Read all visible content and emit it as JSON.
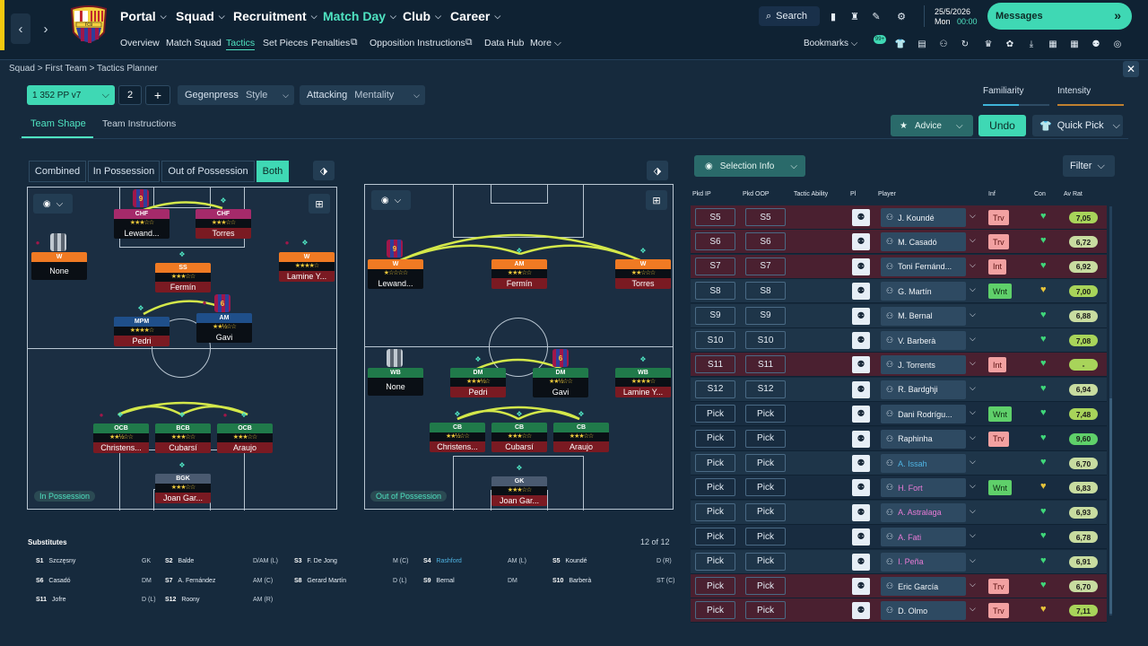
{
  "header": {
    "nav": [
      {
        "label": "Portal"
      },
      {
        "label": "Squad"
      },
      {
        "label": "Recruitment"
      },
      {
        "label": "Match Day"
      },
      {
        "label": "Club"
      },
      {
        "label": "Career"
      }
    ],
    "subnav": [
      "Overview",
      "Match Squad",
      "Tactics",
      "Set Pieces",
      "Penalties",
      "Opposition Instructions",
      "Data Hub",
      "More"
    ],
    "search_label": "Search",
    "date": "25/5/2026",
    "day": "Mon",
    "time": "00:00",
    "messages_label": "Messages",
    "bookmarks_label": "Bookmarks",
    "bookmark_badge": "99+",
    "crest_text": "FCB"
  },
  "breadcrumb": "Squad > First Team > Tactics Planner",
  "controls": {
    "formation": "1  352 PP v7",
    "tactic_slot": "2",
    "plus": "+",
    "style_value": "Gegenpress",
    "style_label": "Style",
    "mentality_value": "Attacking",
    "mentality_label": "Mentality",
    "familiarity": "Familiarity",
    "intensity": "Intensity"
  },
  "tabs": {
    "shape": "Team Shape",
    "instructions": "Team Instructions"
  },
  "buttons": {
    "advice": "Advice",
    "undo": "Undo",
    "quick_pick": "Quick Pick",
    "selection_info": "Selection Info",
    "filter": "Filter"
  },
  "view_modes": [
    "Combined",
    "In Possession",
    "Out of Possession",
    "Both"
  ],
  "pitch_labels": {
    "in": "In Possession",
    "out": "Out of Possession"
  },
  "stars": {
    "s3": "★★★☆☆",
    "s4": "★★★★☆",
    "s25": "★★½☆☆",
    "s45": "★★★★½",
    "s1": "★☆☆☆☆",
    "s2": "★★☆☆☆",
    "s15": "★½☆☆☆",
    "s35": "★★★½☆"
  },
  "in_possession": [
    {
      "role": "CHF",
      "name": "Lewand...",
      "shirt": "9"
    },
    {
      "role": "CHF",
      "name": "Torres"
    },
    {
      "role": "W",
      "name": "None"
    },
    {
      "role": "SS",
      "name": "Fermín"
    },
    {
      "role": "W",
      "name": "Lamine Y..."
    },
    {
      "role": "MPM",
      "name": "Pedri"
    },
    {
      "role": "AM",
      "name": "Gavi",
      "shirt": "6"
    },
    {
      "role": "OCB",
      "name": "Christens..."
    },
    {
      "role": "BCB",
      "name": "Cubarsí"
    },
    {
      "role": "OCB",
      "name": "Araujo"
    },
    {
      "role": "BGK",
      "name": "Joan Gar..."
    }
  ],
  "out_possession": [
    {
      "role": "W",
      "name": "Lewand...",
      "shirt": "9"
    },
    {
      "role": "AM",
      "name": "Fermín"
    },
    {
      "role": "W",
      "name": "Torres"
    },
    {
      "role": "WB",
      "name": "None"
    },
    {
      "role": "DM",
      "name": "Pedri"
    },
    {
      "role": "DM",
      "name": "Gavi",
      "shirt": "6"
    },
    {
      "role": "WB",
      "name": "Lamine Y..."
    },
    {
      "role": "CB",
      "name": "Christens..."
    },
    {
      "role": "CB",
      "name": "Cubarsí"
    },
    {
      "role": "CB",
      "name": "Araujo"
    },
    {
      "role": "GK",
      "name": "Joan Gar..."
    }
  ],
  "subs": {
    "title": "Substitutes",
    "count": "12 of 12",
    "items": [
      {
        "k": "S1",
        "n": "Szczęsny",
        "p": "GK"
      },
      {
        "k": "S2",
        "n": "Balde",
        "p": "D/AM (L)"
      },
      {
        "k": "S3",
        "n": "F. De Jong",
        "p": "M (C)"
      },
      {
        "k": "S4",
        "n": "Rashford",
        "p": "AM (L)"
      },
      {
        "k": "S5",
        "n": "Koundé",
        "p": "D (R)"
      },
      {
        "k": "S6",
        "n": "Casadó",
        "p": "DM"
      },
      {
        "k": "S7",
        "n": "A. Fernández",
        "p": "AM (C)"
      },
      {
        "k": "S8",
        "n": "Gerard Martín",
        "p": "D (L)"
      },
      {
        "k": "S9",
        "n": "Bernal",
        "p": "DM"
      },
      {
        "k": "S10",
        "n": "Barberà",
        "p": "ST (C)"
      },
      {
        "k": "S11",
        "n": "Jofre",
        "p": "D (L)"
      },
      {
        "k": "S12",
        "n": "Roony",
        "p": "AM (R)"
      }
    ]
  },
  "table": {
    "headers": [
      "Pkd IP",
      "Pkd OOP",
      "Tactic Ability",
      "Pl",
      "Player",
      "Inf",
      "Con",
      "Av Rat"
    ],
    "rows": [
      {
        "ip": "S5",
        "oop": "S5",
        "player": "J. Koundé",
        "inf": "Trv",
        "rat": "7,05",
        "style": "red",
        "rc": "#a8d45a"
      },
      {
        "ip": "S6",
        "oop": "S6",
        "player": "M. Casadó",
        "inf": "Trv",
        "rat": "6,72",
        "style": "red",
        "rc": "#c8dca0"
      },
      {
        "ip": "S7",
        "oop": "S7",
        "player": "Toni Fernánd...",
        "inf": "Int",
        "rat": "6,92",
        "style": "red",
        "rc": "#c8dca0"
      },
      {
        "ip": "S8",
        "oop": "S8",
        "player": "G. Martín",
        "inf": "Wnt",
        "rat": "7,00",
        "style": "blue",
        "rc": "#a8d45a"
      },
      {
        "ip": "S9",
        "oop": "S9",
        "player": "M. Bernal",
        "inf": "",
        "rat": "6,88",
        "style": "blue",
        "rc": "#c8dca0"
      },
      {
        "ip": "S10",
        "oop": "S10",
        "player": "V. Barberà",
        "inf": "",
        "rat": "7,08",
        "style": "blue",
        "rc": "#a8d45a"
      },
      {
        "ip": "S11",
        "oop": "S11",
        "player": "J. Torrents",
        "inf": "Int",
        "rat": "-",
        "style": "red",
        "rc": "#a8d45a"
      },
      {
        "ip": "S12",
        "oop": "S12",
        "player": "R. Bardghji",
        "inf": "",
        "rat": "6,94",
        "style": "blue",
        "rc": "#c8dca0"
      },
      {
        "ip": "Pick",
        "oop": "Pick",
        "player": "Dani Rodrígu...",
        "inf": "Wnt",
        "rat": "7,48",
        "style": "dk",
        "rc": "#a8d45a"
      },
      {
        "ip": "Pick",
        "oop": "Pick",
        "player": "Raphinha",
        "inf": "Trv",
        "rat": "9,60",
        "style": "dk",
        "rc": "#5fd06a"
      },
      {
        "ip": "Pick",
        "oop": "Pick",
        "player": "A. Issah",
        "inf": "",
        "rat": "6,70",
        "style": "blue",
        "rc": "#c8dca0",
        "pc": "blue"
      },
      {
        "ip": "Pick",
        "oop": "Pick",
        "player": "H. Fort",
        "inf": "Wnt",
        "rat": "6,83",
        "style": "dk",
        "rc": "#c8dca0",
        "pc": "pink"
      },
      {
        "ip": "Pick",
        "oop": "Pick",
        "player": "A. Astralaga",
        "inf": "",
        "rat": "6,93",
        "style": "blue",
        "rc": "#c8dca0",
        "pc": "pink"
      },
      {
        "ip": "Pick",
        "oop": "Pick",
        "player": "A. Fati",
        "inf": "",
        "rat": "6,78",
        "style": "dk",
        "rc": "#c8dca0",
        "pc": "pink"
      },
      {
        "ip": "Pick",
        "oop": "Pick",
        "player": "I. Peña",
        "inf": "",
        "rat": "6,91",
        "style": "blue",
        "rc": "#c8dca0",
        "pc": "pink"
      },
      {
        "ip": "Pick",
        "oop": "Pick",
        "player": "Eric García",
        "inf": "Trv",
        "rat": "6,70",
        "style": "red",
        "rc": "#c8dca0"
      },
      {
        "ip": "Pick",
        "oop": "Pick",
        "player": "D. Olmo",
        "inf": "Trv",
        "rat": "7,11",
        "style": "red",
        "rc": "#a8d45a"
      }
    ]
  }
}
